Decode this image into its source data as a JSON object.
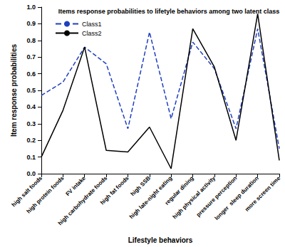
{
  "chart_data": {
    "type": "line",
    "title": "Items response probabilities to lifetyle behaviors among two latent class",
    "x_label": "Lifestyle behaviors",
    "y_label": "Item response probabilities",
    "categories": [
      "high salt foods",
      "high protein foods",
      "FV intake",
      "high carbohydrate foods",
      "high fat foods",
      "high SSB",
      "high late-night eating",
      "regular dining",
      "high physical activity",
      "pressure perception",
      "longer  sleep duration",
      "more screen time"
    ],
    "series": [
      {
        "name": "Class1",
        "color": "#1f3fbf",
        "line_style": "dashed",
        "marker": "none",
        "values": [
          0.47,
          0.55,
          0.76,
          0.66,
          0.27,
          0.85,
          0.33,
          0.79,
          0.63,
          0.27,
          0.87,
          0.15
        ]
      },
      {
        "name": "Class2",
        "color": "#000000",
        "line_style": "solid",
        "marker": "none",
        "values": [
          0.1,
          0.38,
          0.76,
          0.14,
          0.13,
          0.28,
          0.03,
          0.87,
          0.64,
          0.2,
          0.96,
          0.08
        ]
      }
    ],
    "ylim": [
      0,
      1
    ],
    "yticks": [
      {
        "value": 0,
        "label": "0.0"
      },
      0.1,
      0.2,
      0.3,
      0.4,
      0.5,
      0.6,
      0.7,
      0.8,
      0.9,
      {
        "value": 1,
        "label": "1.0"
      }
    ],
    "grid": false,
    "legend": "upper left"
  }
}
